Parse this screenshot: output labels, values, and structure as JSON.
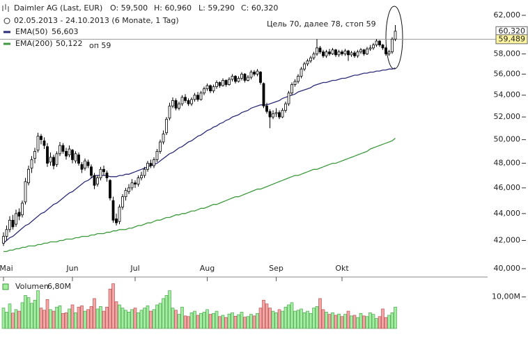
{
  "chart_data": {
    "type": "candlestick",
    "title": "Daimler AG (Last, EUR)",
    "open": "O: 59,500",
    "high": "H: 60,960",
    "low": "L: 59,290",
    "close": "C: 60,320",
    "subtitle": "02.05.2013 - 24.10.2013 (6 Monate, 1 Tag)",
    "annotations": [
      "Цель 70, далее 78, стоп 59",
      "оп 59"
    ],
    "log_scale": true,
    "ylim": [
      40,
      62
    ],
    "yticks": [
      {
        "value": 40,
        "label": "40,000"
      },
      {
        "value": 42,
        "label": "42,000"
      },
      {
        "value": 44,
        "label": "44,000"
      },
      {
        "value": 46,
        "label": "46,000"
      },
      {
        "value": 48,
        "label": "48,000"
      },
      {
        "value": 50,
        "label": "50,000"
      },
      {
        "value": 52,
        "label": "52,000"
      },
      {
        "value": 54,
        "label": "54,000"
      },
      {
        "value": 56,
        "label": "56,000"
      },
      {
        "value": 58,
        "label": "58,000"
      },
      {
        "value": 62,
        "label": "62,000"
      }
    ],
    "last_price": {
      "value": 60.32,
      "label": "60,320"
    },
    "price_line": {
      "value": 59.489,
      "label": "59,489"
    },
    "up_color": "#ffffff",
    "down_color": "#000000",
    "categories": [
      "Mai",
      null,
      null,
      null,
      null,
      null,
      null,
      null,
      null,
      null,
      null,
      null,
      null,
      null,
      null,
      null,
      null,
      null,
      null,
      null,
      null,
      null,
      "Jun",
      null,
      null,
      null,
      null,
      null,
      null,
      null,
      null,
      null,
      null,
      null,
      null,
      null,
      null,
      null,
      null,
      null,
      null,
      null,
      "Jul",
      null,
      null,
      null,
      null,
      null,
      null,
      null,
      null,
      null,
      null,
      null,
      null,
      null,
      null,
      null,
      null,
      null,
      null,
      null,
      null,
      null,
      null,
      "Aug",
      null,
      null,
      null,
      null,
      null,
      null,
      null,
      null,
      null,
      null,
      null,
      null,
      null,
      null,
      null,
      null,
      null,
      null,
      null,
      null,
      null,
      "Sep",
      null,
      null,
      null,
      null,
      null,
      null,
      null,
      null,
      null,
      null,
      null,
      null,
      null,
      null,
      null,
      null,
      null,
      null,
      null,
      null,
      "Okt",
      null,
      null,
      null,
      null,
      null,
      null,
      null,
      null,
      null,
      null,
      null,
      null,
      null,
      null,
      null,
      null,
      null
    ],
    "ohlc": [
      [
        41.8,
        42.6,
        41.6,
        42.3
      ],
      [
        42.3,
        43.1,
        42.0,
        42.8
      ],
      [
        42.8,
        43.8,
        42.6,
        43.5
      ],
      [
        43.5,
        43.9,
        42.8,
        43.0
      ],
      [
        43.2,
        44.3,
        43.0,
        44.0
      ],
      [
        44.1,
        44.4,
        43.5,
        43.8
      ],
      [
        43.9,
        45.0,
        43.7,
        44.8
      ],
      [
        44.9,
        46.8,
        44.7,
        46.5
      ],
      [
        46.4,
        47.8,
        46.2,
        47.5
      ],
      [
        47.6,
        48.6,
        47.2,
        48.3
      ],
      [
        48.4,
        49.3,
        48.0,
        49.0
      ],
      [
        49.1,
        50.6,
        48.9,
        50.3
      ],
      [
        50.3,
        50.5,
        49.6,
        50.0
      ],
      [
        49.9,
        50.2,
        49.2,
        49.5
      ],
      [
        49.4,
        49.7,
        47.7,
        48.0
      ],
      [
        48.1,
        48.9,
        47.8,
        48.5
      ],
      [
        48.5,
        48.7,
        47.5,
        47.8
      ],
      [
        47.9,
        49.0,
        47.7,
        48.8
      ],
      [
        48.8,
        49.8,
        48.6,
        49.5
      ],
      [
        49.5,
        49.7,
        48.8,
        49.0
      ],
      [
        49.0,
        49.3,
        48.3,
        48.6
      ],
      [
        48.7,
        49.5,
        48.5,
        49.2
      ],
      [
        49.1,
        49.2,
        48.0,
        48.3
      ],
      [
        48.2,
        49.0,
        48.0,
        48.8
      ],
      [
        48.7,
        48.9,
        47.8,
        48.0
      ],
      [
        47.9,
        48.1,
        47.2,
        47.5
      ],
      [
        47.6,
        48.4,
        47.4,
        48.2
      ],
      [
        48.1,
        48.3,
        47.6,
        47.8
      ],
      [
        47.7,
        47.9,
        46.8,
        47.0
      ],
      [
        47.0,
        47.2,
        45.9,
        46.2
      ],
      [
        46.3,
        47.0,
        46.1,
        46.8
      ],
      [
        46.8,
        47.7,
        46.6,
        47.5
      ],
      [
        47.5,
        47.8,
        47.0,
        47.3
      ],
      [
        47.2,
        47.4,
        46.5,
        46.8
      ],
      [
        46.6,
        46.7,
        45.0,
        45.2
      ],
      [
        45.0,
        45.3,
        43.3,
        43.5
      ],
      [
        43.6,
        44.0,
        43.1,
        43.3
      ],
      [
        43.4,
        44.7,
        43.2,
        44.5
      ],
      [
        44.5,
        45.5,
        44.3,
        45.3
      ],
      [
        45.3,
        46.0,
        45.0,
        45.8
      ],
      [
        45.7,
        46.3,
        45.5,
        46.0
      ],
      [
        46.0,
        46.7,
        45.8,
        46.4
      ],
      [
        46.4,
        46.6,
        46.0,
        46.3
      ],
      [
        46.3,
        47.0,
        46.1,
        46.8
      ],
      [
        46.8,
        47.3,
        46.6,
        47.0
      ],
      [
        47.0,
        47.7,
        46.8,
        47.5
      ],
      [
        47.5,
        48.2,
        47.3,
        48.0
      ],
      [
        48.0,
        48.3,
        47.6,
        47.8
      ],
      [
        47.8,
        48.5,
        47.6,
        48.3
      ],
      [
        48.3,
        49.2,
        48.1,
        49.0
      ],
      [
        49.0,
        50.0,
        48.8,
        49.8
      ],
      [
        49.8,
        50.8,
        49.6,
        50.5
      ],
      [
        50.6,
        52.0,
        50.4,
        51.8
      ],
      [
        51.9,
        53.3,
        51.7,
        53.0
      ],
      [
        53.0,
        53.8,
        52.8,
        53.5
      ],
      [
        53.5,
        53.7,
        52.6,
        52.8
      ],
      [
        52.8,
        53.4,
        52.6,
        53.2
      ],
      [
        53.2,
        54.0,
        53.0,
        53.8
      ],
      [
        53.8,
        54.1,
        53.3,
        53.5
      ],
      [
        53.5,
        53.7,
        53.0,
        53.2
      ],
      [
        53.2,
        53.8,
        53.0,
        53.6
      ],
      [
        53.6,
        54.2,
        53.4,
        54.0
      ],
      [
        54.0,
        54.3,
        53.4,
        53.6
      ],
      [
        53.6,
        54.4,
        53.5,
        54.2
      ],
      [
        54.2,
        54.8,
        54.0,
        54.6
      ],
      [
        54.6,
        55.1,
        54.4,
        54.9
      ],
      [
        54.9,
        55.0,
        54.2,
        54.4
      ],
      [
        54.4,
        55.0,
        54.2,
        54.8
      ],
      [
        54.8,
        55.4,
        54.6,
        55.2
      ],
      [
        55.2,
        55.3,
        54.7,
        54.9
      ],
      [
        54.9,
        55.6,
        54.8,
        55.4
      ],
      [
        55.4,
        55.5,
        54.8,
        55.0
      ],
      [
        55.0,
        55.7,
        54.9,
        55.5
      ],
      [
        55.5,
        56.0,
        55.3,
        55.8
      ],
      [
        55.8,
        55.9,
        55.1,
        55.3
      ],
      [
        55.3,
        55.8,
        55.2,
        55.6
      ],
      [
        55.6,
        56.2,
        55.4,
        56.0
      ],
      [
        56.0,
        56.1,
        55.2,
        55.4
      ],
      [
        55.4,
        55.9,
        55.3,
        55.7
      ],
      [
        55.7,
        56.4,
        55.5,
        56.2
      ],
      [
        56.2,
        56.4,
        55.8,
        56.0
      ],
      [
        56.0,
        56.5,
        55.8,
        56.3
      ],
      [
        56.2,
        56.3,
        55.0,
        55.2
      ],
      [
        55.1,
        55.2,
        52.8,
        53.0
      ],
      [
        53.0,
        53.3,
        52.3,
        52.5
      ],
      [
        52.5,
        52.7,
        51.0,
        52.0
      ],
      [
        52.0,
        52.6,
        51.8,
        52.3
      ],
      [
        52.3,
        52.8,
        52.0,
        52.4
      ],
      [
        52.4,
        52.6,
        51.8,
        52.0
      ],
      [
        52.0,
        52.8,
        51.9,
        52.6
      ],
      [
        52.6,
        53.4,
        52.4,
        53.2
      ],
      [
        53.2,
        54.4,
        53.0,
        54.2
      ],
      [
        54.2,
        55.2,
        54.0,
        55.0
      ],
      [
        55.0,
        55.5,
        54.8,
        55.3
      ],
      [
        55.3,
        56.0,
        55.1,
        55.8
      ],
      [
        55.8,
        56.7,
        55.6,
        56.5
      ],
      [
        56.5,
        57.2,
        56.3,
        57.0
      ],
      [
        57.0,
        57.5,
        56.8,
        57.3
      ],
      [
        57.3,
        57.8,
        57.1,
        57.6
      ],
      [
        57.6,
        58.2,
        57.4,
        58.0
      ],
      [
        58.0,
        59.5,
        57.8,
        58.6
      ],
      [
        58.6,
        58.8,
        58.0,
        58.2
      ],
      [
        58.2,
        58.4,
        57.6,
        57.8
      ],
      [
        57.8,
        58.4,
        57.6,
        58.2
      ],
      [
        58.2,
        58.5,
        57.8,
        58.0
      ],
      [
        58.0,
        58.6,
        57.9,
        58.4
      ],
      [
        58.4,
        58.5,
        57.7,
        57.9
      ],
      [
        57.9,
        58.4,
        57.7,
        58.2
      ],
      [
        58.2,
        58.4,
        57.8,
        58.0
      ],
      [
        58.0,
        58.5,
        57.8,
        58.3
      ],
      [
        58.3,
        58.4,
        57.3,
        57.9
      ],
      [
        57.9,
        58.3,
        57.7,
        58.1
      ],
      [
        58.1,
        58.3,
        57.6,
        57.8
      ],
      [
        57.8,
        58.4,
        57.6,
        58.2
      ],
      [
        58.2,
        58.6,
        58.0,
        58.4
      ],
      [
        58.4,
        58.5,
        57.8,
        58.0
      ],
      [
        58.0,
        58.7,
        57.9,
        58.5
      ],
      [
        58.5,
        58.9,
        58.3,
        58.6
      ],
      [
        58.6,
        59.1,
        58.4,
        58.9
      ],
      [
        58.9,
        59.5,
        58.7,
        59.3
      ],
      [
        59.3,
        59.4,
        58.7,
        58.9
      ],
      [
        58.9,
        59.0,
        58.4,
        58.6
      ],
      [
        58.6,
        58.7,
        57.8,
        58.0
      ],
      [
        58.0,
        58.4,
        57.8,
        58.2
      ],
      [
        58.2,
        59.7,
        58.0,
        59.5
      ],
      [
        59.5,
        60.96,
        59.29,
        60.32
      ]
    ],
    "series": [
      {
        "name": "EMA(50)",
        "color": "#2b2b78",
        "last_label": "56,603",
        "values": [
          41.8,
          42.0,
          42.2,
          42.3,
          42.5,
          42.7,
          42.9,
          43.1,
          43.2,
          43.4,
          43.6,
          43.8,
          44.0,
          44.1,
          44.3,
          44.5,
          44.7,
          44.8,
          45.0,
          45.2,
          45.4,
          45.6,
          45.7,
          45.9,
          46.1,
          46.3,
          46.5,
          46.6,
          46.8,
          47.0,
          47.0,
          47.0,
          47.0,
          47.0,
          46.9,
          46.9,
          46.9,
          47.0,
          47.0,
          47.1,
          47.1,
          47.2,
          47.3,
          47.4,
          47.5,
          47.6,
          47.7,
          47.8,
          47.9,
          48.0,
          48.2,
          48.4,
          48.6,
          48.8,
          48.9,
          49.1,
          49.3,
          49.4,
          49.6,
          49.8,
          49.9,
          50.1,
          50.3,
          50.4,
          50.6,
          50.8,
          50.9,
          51.1,
          51.2,
          51.4,
          51.5,
          51.7,
          51.8,
          52.0,
          52.1,
          52.2,
          52.4,
          52.5,
          52.6,
          52.8,
          52.9,
          53.0,
          53.1,
          53.1,
          53.1,
          53.2,
          53.3,
          53.4,
          53.5,
          53.7,
          53.8,
          53.9,
          54.0,
          54.1,
          54.3,
          54.4,
          54.5,
          54.6,
          54.7,
          54.9,
          55.0,
          55.1,
          55.2,
          55.2,
          55.3,
          55.4,
          55.4,
          55.5,
          55.6,
          55.6,
          55.7,
          55.8,
          55.9,
          55.9,
          56.0,
          56.1,
          56.1,
          56.2,
          56.2,
          56.3,
          56.3,
          56.4,
          56.4,
          56.5,
          56.5,
          56.603
        ]
      },
      {
        "name": "EMA(200)",
        "color": "#3c9a3c",
        "last_label": "50,122",
        "values": [
          41.2,
          41.2,
          41.3,
          41.3,
          41.4,
          41.4,
          41.5,
          41.5,
          41.6,
          41.6,
          41.6,
          41.7,
          41.7,
          41.8,
          41.8,
          41.9,
          41.9,
          41.9,
          42.0,
          42.0,
          42.1,
          42.1,
          42.1,
          42.2,
          42.2,
          42.3,
          42.3,
          42.3,
          42.4,
          42.4,
          42.5,
          42.5,
          42.5,
          42.6,
          42.6,
          42.7,
          42.7,
          42.8,
          42.8,
          42.8,
          42.9,
          42.9,
          43.0,
          43.1,
          43.1,
          43.2,
          43.3,
          43.3,
          43.4,
          43.5,
          43.5,
          43.6,
          43.7,
          43.7,
          43.8,
          43.9,
          43.9,
          44.0,
          44.0,
          44.1,
          44.2,
          44.2,
          44.3,
          44.4,
          44.4,
          44.5,
          44.6,
          44.7,
          44.7,
          44.8,
          44.9,
          45.0,
          45.1,
          45.2,
          45.3,
          45.3,
          45.4,
          45.5,
          45.6,
          45.7,
          45.8,
          45.9,
          45.9,
          46.0,
          46.1,
          46.2,
          46.3,
          46.4,
          46.5,
          46.6,
          46.7,
          46.8,
          46.9,
          47.0,
          47.0,
          47.1,
          47.2,
          47.3,
          47.4,
          47.5,
          47.5,
          47.6,
          47.7,
          47.8,
          47.9,
          48.0,
          48.0,
          48.1,
          48.2,
          48.3,
          48.4,
          48.5,
          48.6,
          48.7,
          48.8,
          48.9,
          49.0,
          49.2,
          49.3,
          49.4,
          49.5,
          49.6,
          49.7,
          49.8,
          49.9,
          50.122
        ]
      }
    ],
    "volume": {
      "label": "Volumen",
      "current": "6,80M",
      "ylim": [
        0,
        15
      ],
      "yticks": [
        {
          "value": 10,
          "label": "10,00M"
        }
      ],
      "up_color": "#a3eda3",
      "down_color": "#f2a6a6",
      "values": [
        6.5,
        5.2,
        7.8,
        4.9,
        6.0,
        5.5,
        8.2,
        10.5,
        9.8,
        8.0,
        9.0,
        12.0,
        6.5,
        5.8,
        9.2,
        6.0,
        5.5,
        6.8,
        7.2,
        4.8,
        5.0,
        6.2,
        7.5,
        5.0,
        6.8,
        7.2,
        5.5,
        6.0,
        7.0,
        9.5,
        6.2,
        7.0,
        5.5,
        6.8,
        12.5,
        14.2,
        8.5,
        7.5,
        6.5,
        5.8,
        5.2,
        6.0,
        6.5,
        5.0,
        5.8,
        6.5,
        7.2,
        5.5,
        6.0,
        7.5,
        8.0,
        9.5,
        10.5,
        12.0,
        6.5,
        5.8,
        4.5,
        6.8,
        4.0,
        3.8,
        5.0,
        5.5,
        4.2,
        4.8,
        5.2,
        6.0,
        4.5,
        4.8,
        5.5,
        3.8,
        4.2,
        3.5,
        4.6,
        5.0,
        3.9,
        4.4,
        5.2,
        3.6,
        3.8,
        4.5,
        4.0,
        4.8,
        6.5,
        9.0,
        7.8,
        6.5,
        5.5,
        5.0,
        6.0,
        5.5,
        6.8,
        7.5,
        8.2,
        5.5,
        5.8,
        6.2,
        5.0,
        5.5,
        4.8,
        6.5,
        7.0,
        9.5,
        6.0,
        5.2,
        4.5,
        5.0,
        4.2,
        4.6,
        3.8,
        4.5,
        5.5,
        4.0,
        4.2,
        3.5,
        4.8,
        4.0,
        3.8,
        5.0,
        4.5,
        3.2,
        3.8,
        6.2,
        3.5,
        4.2,
        5.0,
        6.8
      ]
    }
  }
}
